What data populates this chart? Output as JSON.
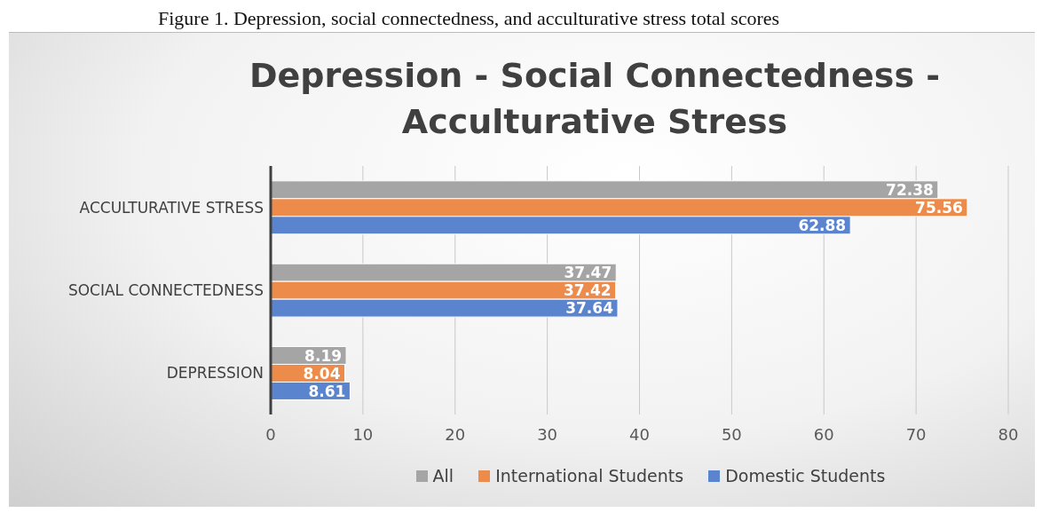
{
  "chart_data": {
    "type": "bar",
    "orientation": "horizontal",
    "title": "Depression - Social Connectedness - Acculturative Stress",
    "annotations": [
      "Figure 1. Depression, social connectedness, and acculturative stress total scores"
    ],
    "categories": [
      "ACCULTURATIVE STRESS",
      "SOCIAL CONNECTEDNESS",
      "DEPRESSION"
    ],
    "series": [
      {
        "name": "All",
        "color": "#a5a5a5",
        "values": [
          72.38,
          37.47,
          8.19
        ]
      },
      {
        "name": "International Students",
        "color": "#ed8b4a",
        "values": [
          75.56,
          37.42,
          8.04
        ]
      },
      {
        "name": "Domestic Students",
        "color": "#5b84cf",
        "values": [
          62.88,
          37.64,
          8.61
        ]
      }
    ],
    "xlim": [
      0,
      80
    ],
    "xticks": [
      0,
      10,
      20,
      30,
      40,
      50,
      60,
      70,
      80
    ],
    "grid": "x",
    "legend": "bottom",
    "data_labels": true
  }
}
